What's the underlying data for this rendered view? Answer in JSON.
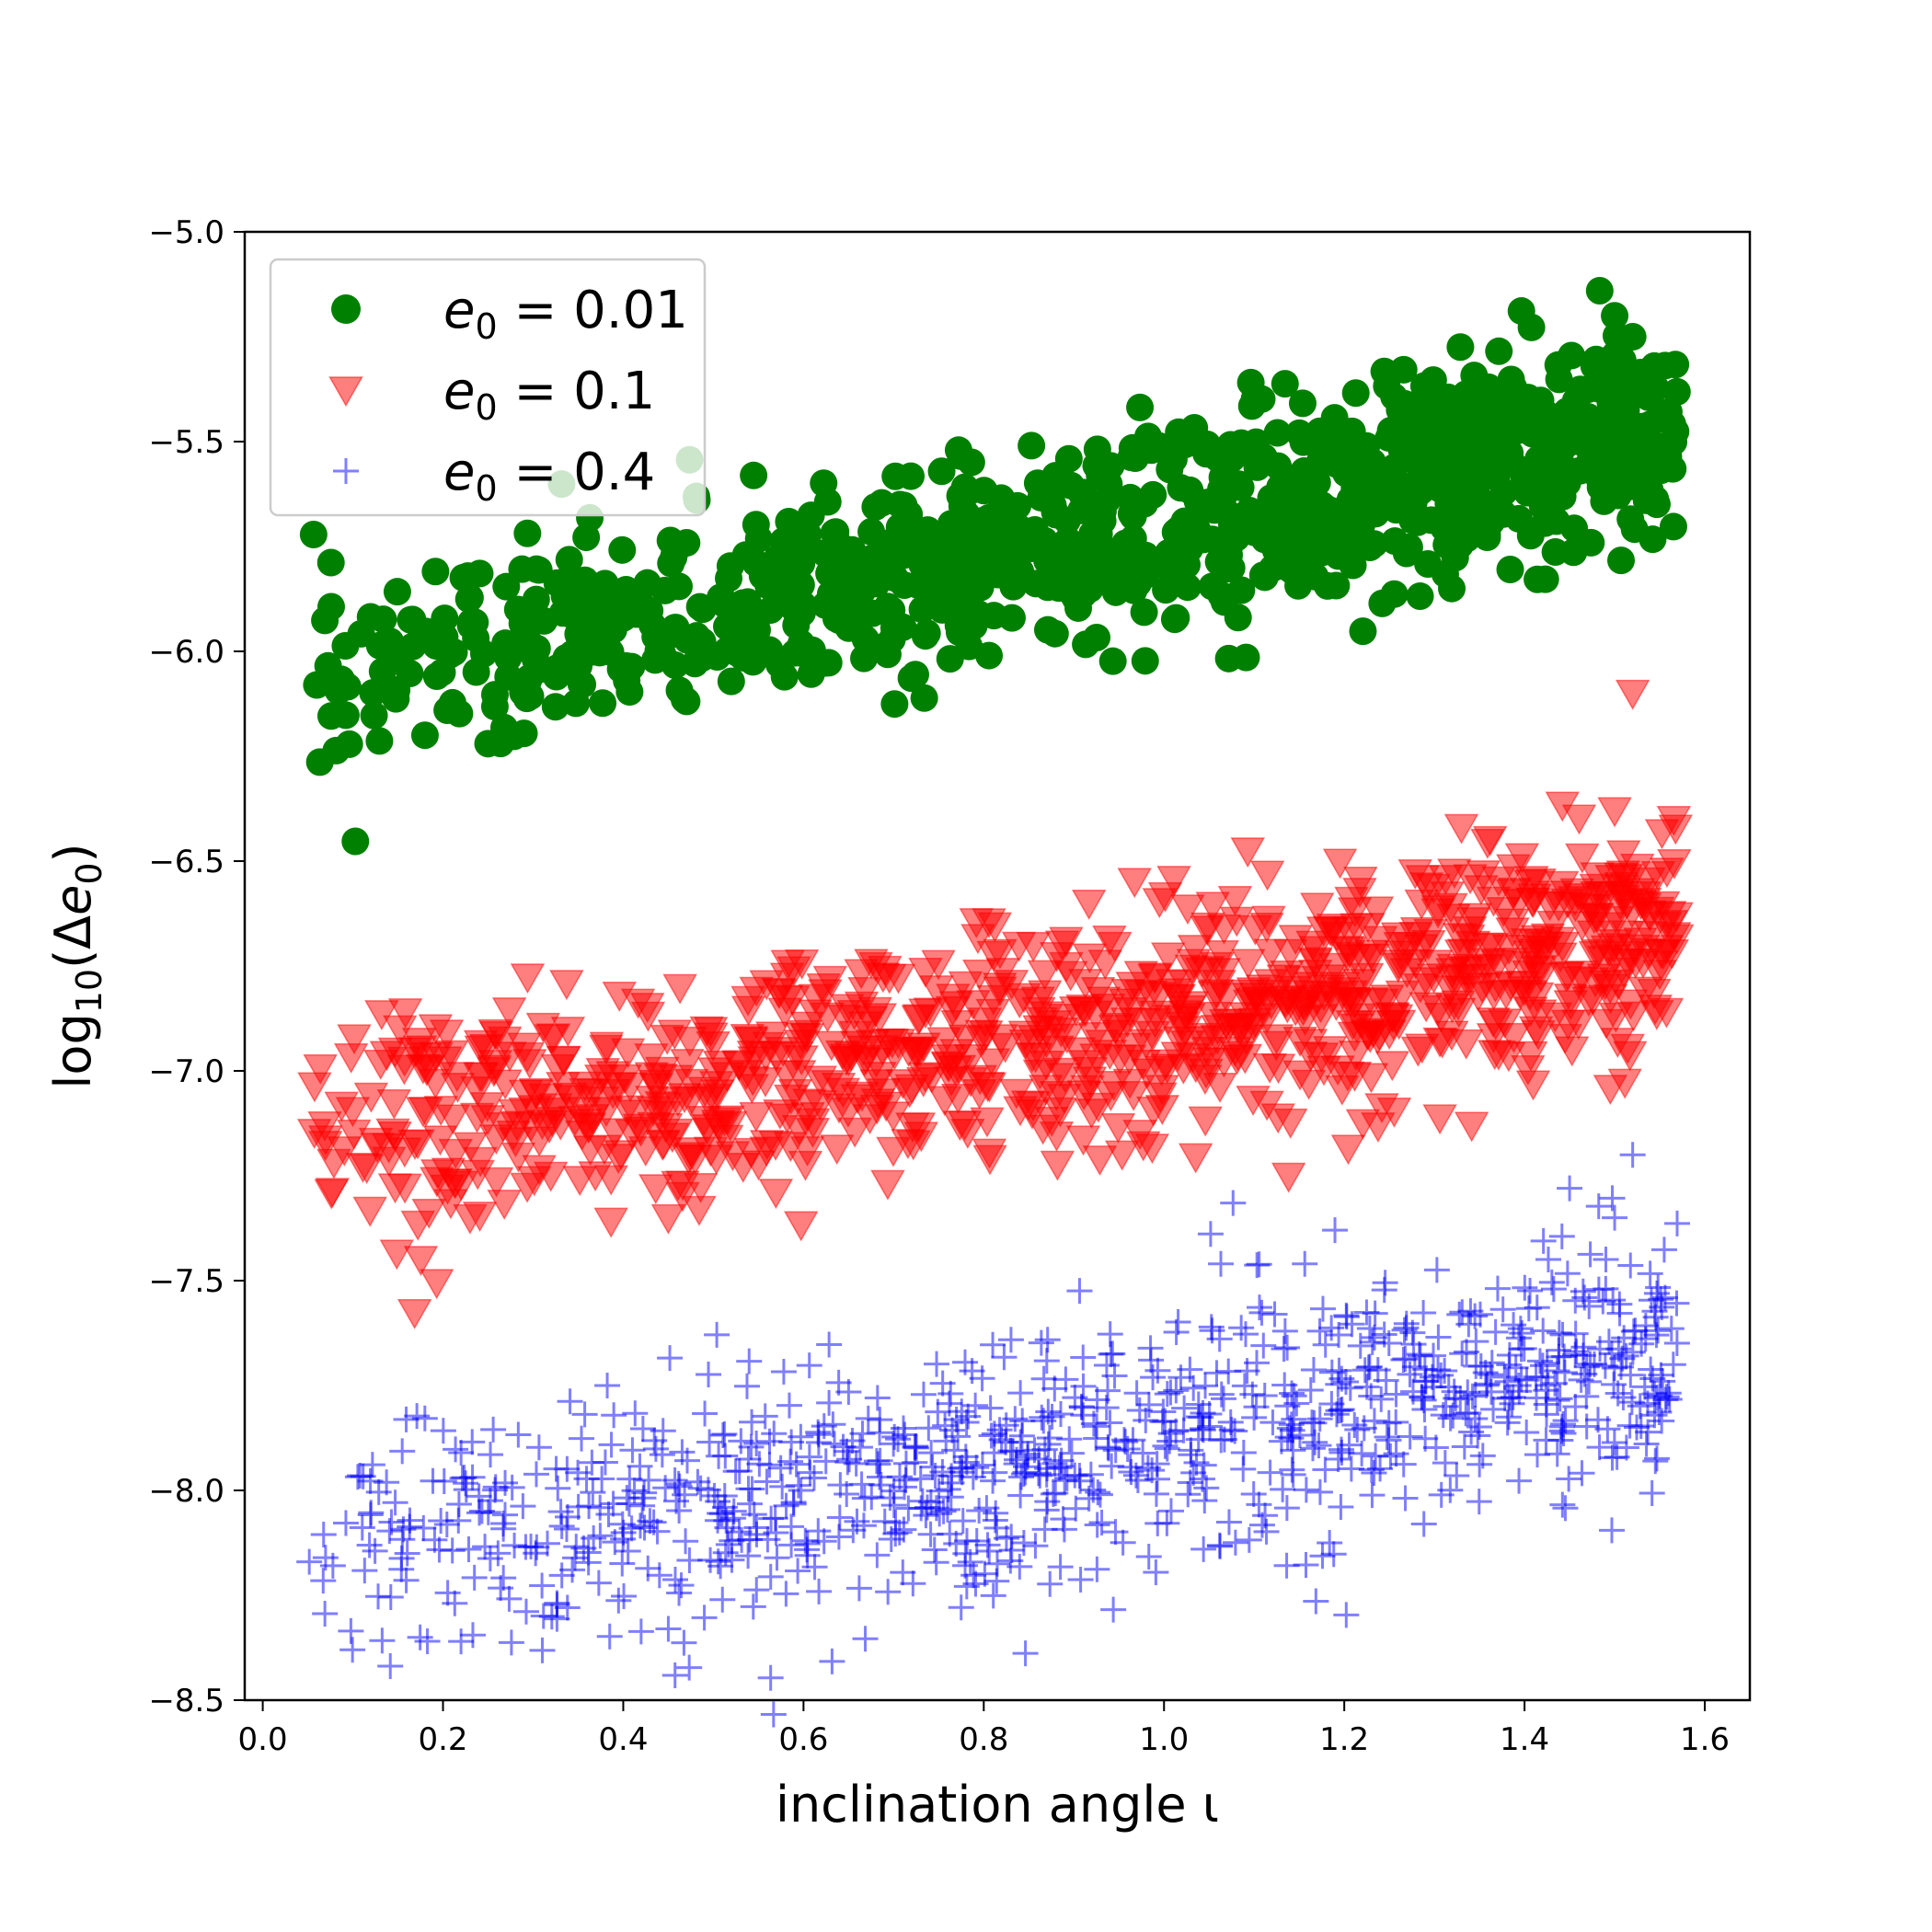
{
  "chart_data": {
    "type": "scatter",
    "xlabel": "inclination angle ι",
    "ylabel_parts": {
      "prefix": "log",
      "sub": "10",
      "open": "(Δ",
      "var": "e",
      "var_sub": "0",
      "close": ")"
    },
    "xlim": [
      -0.02,
      1.65
    ],
    "ylim": [
      -8.5,
      -5.0
    ],
    "x_ticks": [
      "0.0",
      "0.2",
      "0.4",
      "0.6",
      "0.8",
      "1.0",
      "1.2",
      "1.4",
      "1.6"
    ],
    "x_tick_values": [
      0.0,
      0.2,
      0.4,
      0.6,
      0.8,
      1.0,
      1.2,
      1.4,
      1.6
    ],
    "y_ticks": [
      "−5.0",
      "−5.5",
      "−6.0",
      "−6.5",
      "−7.0",
      "−7.5",
      "−8.0",
      "−8.5"
    ],
    "y_tick_values": [
      -5.0,
      -5.5,
      -6.0,
      -6.5,
      -7.0,
      -7.5,
      -8.0,
      -8.5
    ],
    "grid": false,
    "legend_position": "top-left",
    "series": [
      {
        "name": "e₀ = 0.01",
        "label_var": "e",
        "label_sub": "0",
        "label_rest": " = 0.01",
        "marker": "circle",
        "color": "#008000",
        "opacity": 1.0,
        "points_approx": 1000,
        "trend": [
          [
            0.05,
            -6.05
          ],
          [
            0.3,
            -5.98
          ],
          [
            0.6,
            -5.88
          ],
          [
            0.9,
            -5.75
          ],
          [
            1.2,
            -5.62
          ],
          [
            1.4,
            -5.52
          ],
          [
            1.57,
            -5.45
          ]
        ],
        "spread": 0.12,
        "x_range": [
          0.05,
          1.57
        ],
        "extremes": [
          [
            0.18,
            -6.2
          ],
          [
            0.25,
            -6.22
          ],
          [
            1.5,
            -5.2
          ],
          [
            1.52,
            -5.25
          ],
          [
            0.06,
            -6.08
          ]
        ]
      },
      {
        "name": "e₀ = 0.1",
        "label_var": "e",
        "label_sub": "0",
        "label_rest": " = 0.1",
        "marker": "triangle-down",
        "color": "#ff0000",
        "opacity": 0.5,
        "points_approx": 1000,
        "trend": [
          [
            0.05,
            -7.12
          ],
          [
            0.3,
            -7.1
          ],
          [
            0.6,
            -7.02
          ],
          [
            0.9,
            -6.92
          ],
          [
            1.2,
            -6.82
          ],
          [
            1.4,
            -6.74
          ],
          [
            1.57,
            -6.7
          ]
        ],
        "spread": 0.14,
        "x_range": [
          0.05,
          1.57
        ],
        "extremes": [
          [
            1.52,
            -6.1
          ],
          [
            0.45,
            -7.35
          ],
          [
            0.23,
            -7.35
          ],
          [
            1.5,
            -6.38
          ],
          [
            1.33,
            -6.42
          ]
        ]
      },
      {
        "name": "e₀ = 0.4",
        "label_var": "e",
        "label_sub": "0",
        "label_rest": " = 0.4",
        "marker": "plus",
        "color": "#0000ff",
        "opacity": 0.5,
        "points_approx": 1000,
        "trend": [
          [
            0.05,
            -8.1
          ],
          [
            0.3,
            -8.08
          ],
          [
            0.6,
            -8.02
          ],
          [
            0.9,
            -7.92
          ],
          [
            1.2,
            -7.8
          ],
          [
            1.4,
            -7.72
          ],
          [
            1.57,
            -7.68
          ]
        ],
        "spread": 0.15,
        "x_range": [
          0.05,
          1.57
        ],
        "extremes": [
          [
            1.52,
            -7.2
          ],
          [
            1.45,
            -7.28
          ],
          [
            0.22,
            -8.36
          ],
          [
            0.45,
            -8.33
          ],
          [
            1.5,
            -7.35
          ]
        ]
      }
    ]
  }
}
